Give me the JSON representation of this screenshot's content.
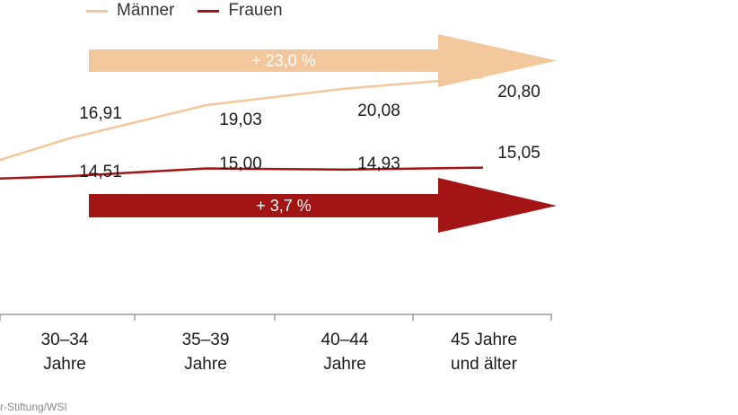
{
  "chart_data": {
    "type": "line",
    "categories": [
      "30–34\nJahre",
      "35–39\nJahre",
      "40–44\nJahre",
      "45 Jahre\nund älter"
    ],
    "series": [
      {
        "name": "Männer",
        "color": "#f3c79c",
        "values": [
          16.91,
          19.03,
          20.08,
          20.8
        ],
        "labels": [
          "16,91",
          "19,03",
          "20,08",
          "20,80"
        ]
      },
      {
        "name": "Frauen",
        "color": "#a31515",
        "values": [
          14.51,
          15.0,
          14.93,
          15.05
        ],
        "labels": [
          "14,51",
          "15,00",
          "14,93",
          "15,05"
        ]
      }
    ],
    "annotations": [
      {
        "text": "+ 23,0 %",
        "color": "#f3c79c",
        "series": "Männer"
      },
      {
        "text": "+ 3,7 %",
        "color": "#a31515",
        "series": "Frauen"
      }
    ],
    "legend_position": "top-left",
    "grid": false
  },
  "source": "r-Stiftung/WSI"
}
